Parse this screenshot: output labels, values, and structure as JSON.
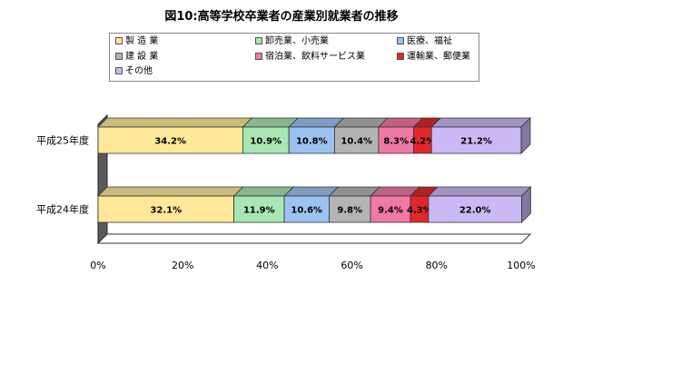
{
  "chart_data": {
    "type": "bar",
    "orientation": "horizontal",
    "stacked": true,
    "percent": true,
    "title": "図10:高等学校卒業者の産業別就業者の推移",
    "categories": [
      "平成25年度",
      "平成24年度"
    ],
    "series": [
      {
        "name": "製 造 業",
        "values": [
          34.2,
          32.1
        ],
        "labels": [
          "34.2%",
          "32.1%"
        ],
        "color": "#fde89a"
      },
      {
        "name": "卸売業、小売業",
        "values": [
          10.9,
          11.9
        ],
        "labels": [
          "10.9%",
          "11.9%"
        ],
        "color": "#a8e6b4"
      },
      {
        "name": "医療、福祉",
        "values": [
          10.8,
          10.6
        ],
        "labels": [
          "10.8%",
          "10.6%"
        ],
        "color": "#9cc3ef"
      },
      {
        "name": "建 設 業",
        "values": [
          10.4,
          9.8
        ],
        "labels": [
          "10.4%",
          "9.8%"
        ],
        "color": "#b4b4b4"
      },
      {
        "name": "宿泊業、飲料サービス業",
        "values": [
          8.3,
          9.4
        ],
        "labels": [
          "8.3%",
          "9.4%"
        ],
        "color": "#ef79a5"
      },
      {
        "name": "運輸業、郵便業",
        "values": [
          4.2,
          4.3
        ],
        "labels": [
          "4.2%",
          "4.3%"
        ],
        "color": "#e0282a"
      },
      {
        "name": "その他",
        "values": [
          21.2,
          22.0
        ],
        "labels": [
          "21.2%",
          "22.0%"
        ],
        "color": "#cab9f4"
      }
    ],
    "xlim": [
      0,
      100
    ],
    "x_ticks": [
      "0%",
      "20%",
      "40%",
      "60%",
      "80%",
      "100%"
    ],
    "legend_position": "top",
    "grid": false,
    "style": "3d"
  }
}
